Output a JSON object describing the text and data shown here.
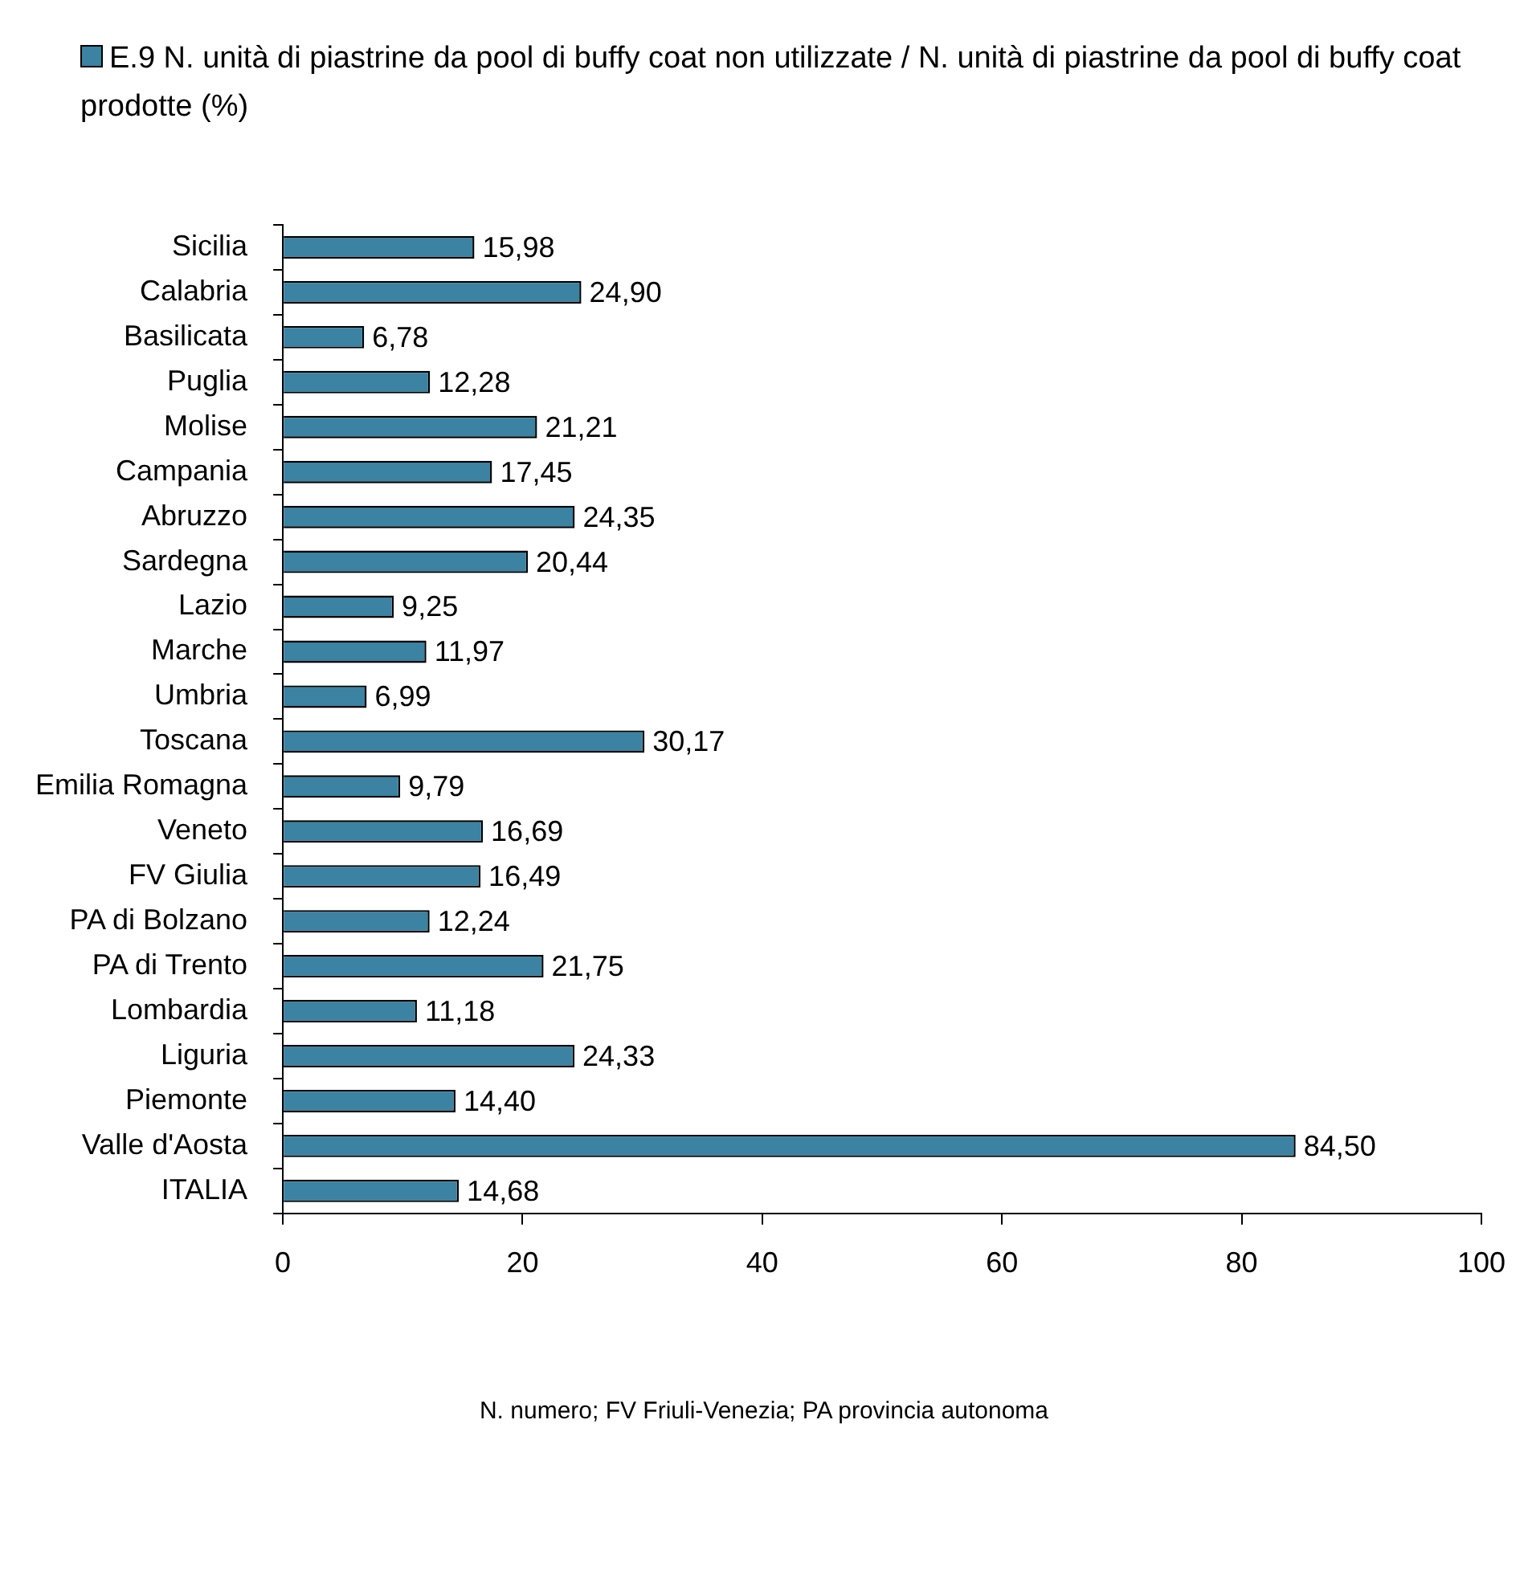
{
  "chart_data": {
    "type": "bar",
    "orientation": "horizontal",
    "categories": [
      "Sicilia",
      "Calabria",
      "Basilicata",
      "Puglia",
      "Molise",
      "Campania",
      "Abruzzo",
      "Sardegna",
      "Lazio",
      "Marche",
      "Umbria",
      "Toscana",
      "Emilia Romagna",
      "Veneto",
      "FV Giulia",
      "PA di Bolzano",
      "PA di Trento",
      "Lombardia",
      "Liguria",
      "Piemonte",
      "Valle d'Aosta",
      "ITALIA"
    ],
    "series": [
      {
        "name": "E.9 N. unità di piastrine da pool di buffy coat non utilizzate / N. unità di piastrine da pool di buffy coat prodotte (%)",
        "color": "#3b82a3",
        "values": [
          15.98,
          24.9,
          6.78,
          12.28,
          21.21,
          17.45,
          24.35,
          20.44,
          9.25,
          11.97,
          6.99,
          30.17,
          9.79,
          16.69,
          16.49,
          12.24,
          21.75,
          11.18,
          24.33,
          14.4,
          84.5,
          14.68
        ],
        "value_labels": [
          "15,98",
          "24,90",
          "6,78",
          "12,28",
          "21,21",
          "17,45",
          "24,35",
          "20,44",
          "9,25",
          "11,97",
          "6,99",
          "30,17",
          "9,79",
          "16,69",
          "16,49",
          "12,24",
          "21,75",
          "11,18",
          "24,33",
          "14,40",
          "84,50",
          "14,68"
        ]
      }
    ],
    "xlim": [
      0,
      100
    ],
    "xticks": [
      0,
      20,
      40,
      60,
      80,
      100
    ],
    "grid": false,
    "legend": "top",
    "annotations": [
      "N. numero; FV Friuli-Venezia; PA provincia autonoma"
    ]
  }
}
